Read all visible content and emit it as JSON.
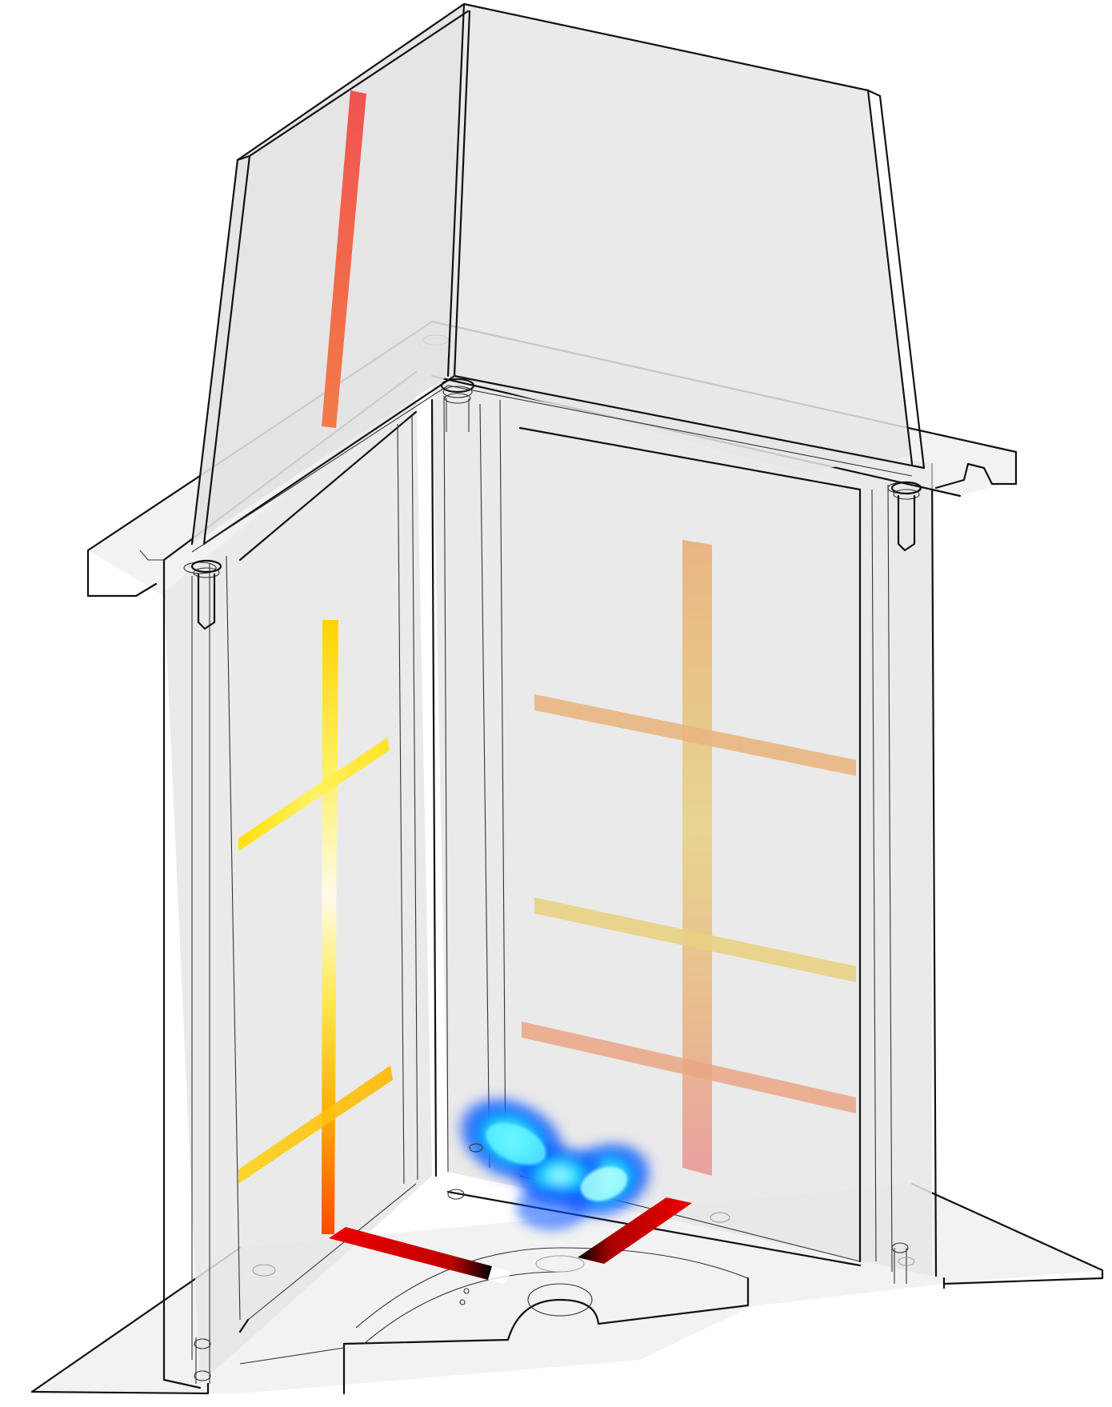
{
  "figure": {
    "description_visible_text": "",
    "colors": {
      "wall_fill": "#e6e6e6",
      "outline": "#111111",
      "top_strip": "#f25a4e",
      "left_vertical_grad": [
        "#ffe21a",
        "#fffbe0",
        "#ffcc00",
        "#ff7a00",
        "#ff4a00"
      ],
      "right_grid": "#e8b47d",
      "floor_strip": "#e80000",
      "flame_core": "#00e5ff",
      "flame_outer": "#0038ff"
    }
  }
}
